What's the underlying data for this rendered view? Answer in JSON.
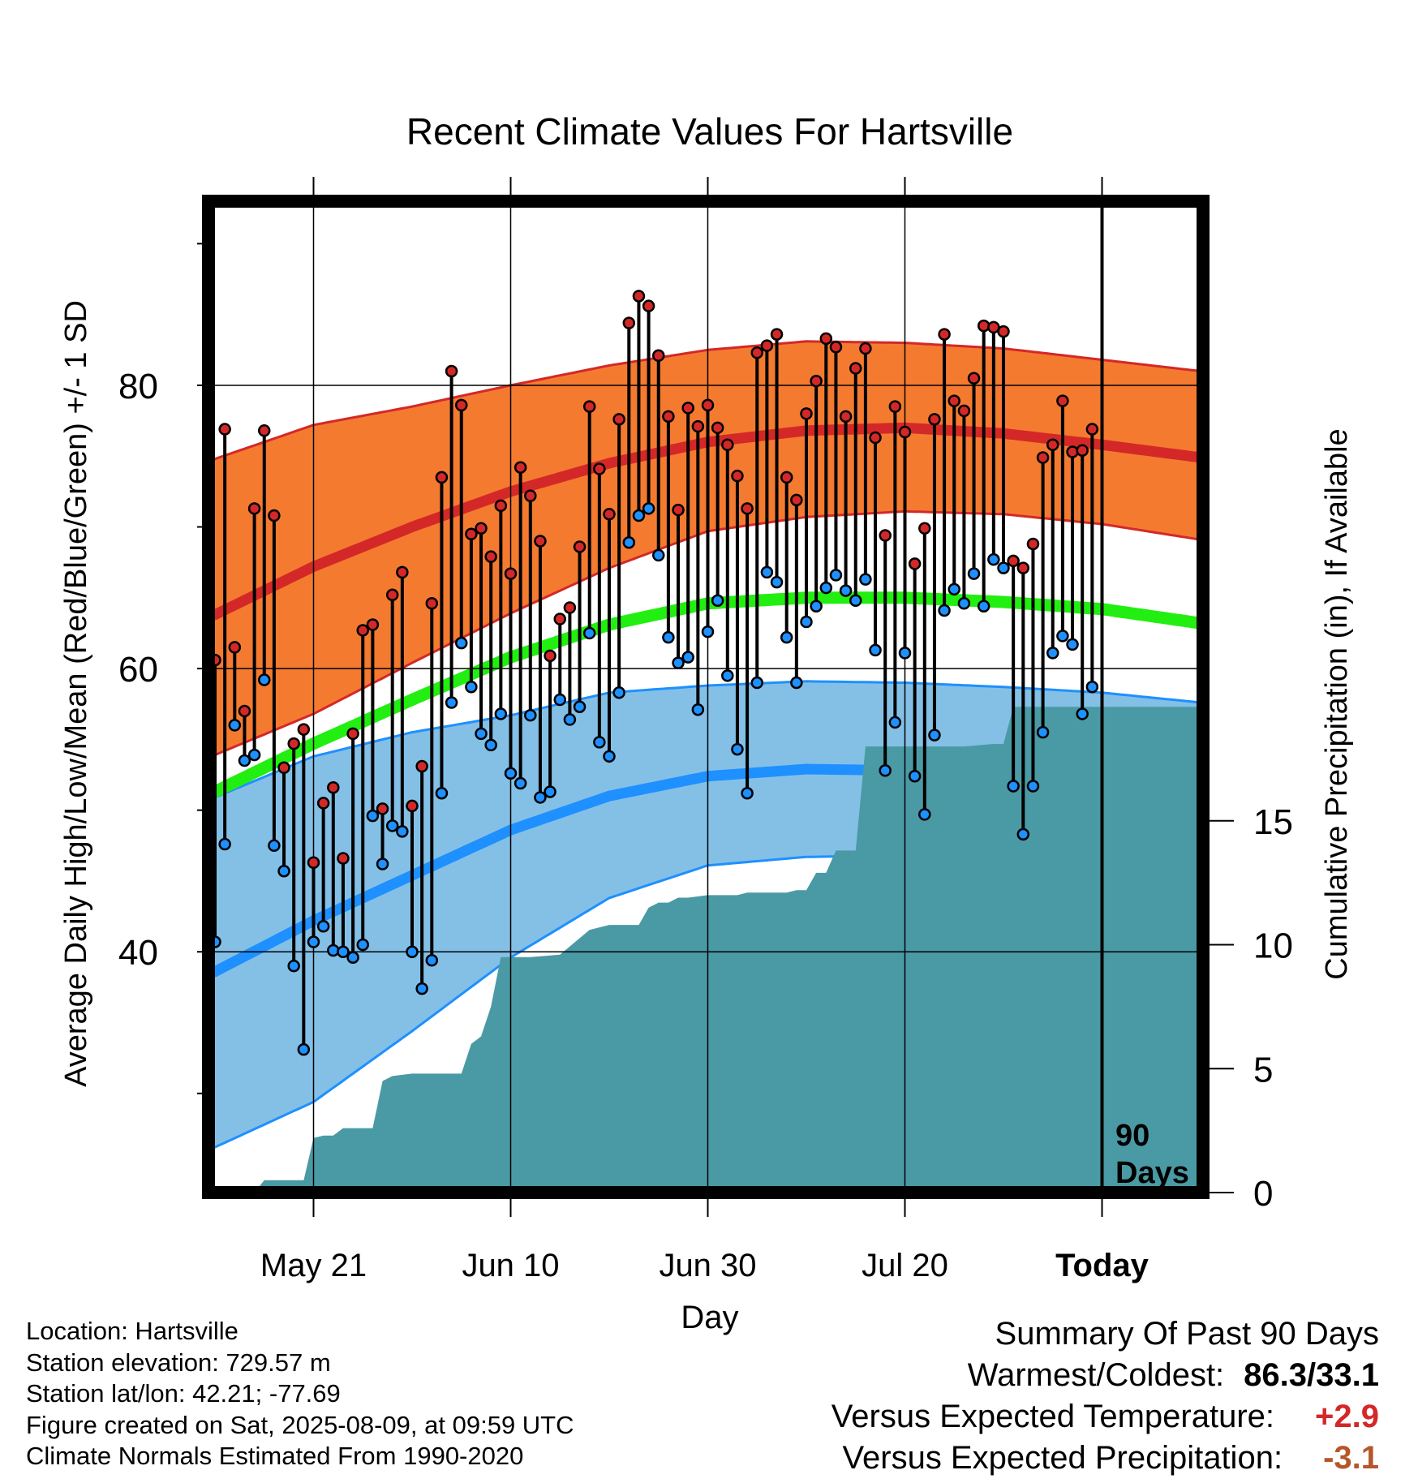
{
  "chart_data": {
    "type": "line",
    "title": "Recent Climate Values For Hartsville",
    "xlabel": "Day",
    "ylabel": "Average Daily High/Low/Mean (Red/Blue/Green) +/- 1 SD",
    "y2label": "Cumulative Precipitation (in), If Available",
    "x_tick_labels": [
      "May 21",
      "Jun 10",
      "Jun 30",
      "Jul 20",
      "Today"
    ],
    "y_ticks": [
      "40",
      "60",
      "80"
    ],
    "y2_ticks": [
      "0",
      "5",
      "10",
      "15"
    ],
    "ylim": [
      23,
      93
    ],
    "y2lim": [
      0,
      40
    ],
    "today_label_line1": "90",
    "today_label_line2": "Days",
    "colors": {
      "high_band": "#f47a30",
      "high_mean": "#d42828",
      "low_band": "#84c0e6",
      "low_mean": "#1e90ff",
      "mean_line": "#22ee11",
      "precip": "#4a9aa5",
      "high_marker": "#d42828",
      "low_marker": "#1e90ff"
    },
    "normals": {
      "day_index": [
        0,
        10,
        20,
        30,
        40,
        50,
        60,
        70,
        80,
        90,
        100
      ],
      "high_mean": [
        63.8,
        67.2,
        70.0,
        72.5,
        74.5,
        76.0,
        76.8,
        77.0,
        76.6,
        75.8,
        74.9
      ],
      "high_sd_upper": [
        74.8,
        77.2,
        78.5,
        80.0,
        81.4,
        82.5,
        83.1,
        83.0,
        82.6,
        81.8,
        81.0
      ],
      "high_sd_lower": [
        53.9,
        56.8,
        60.4,
        63.9,
        67.1,
        69.7,
        70.7,
        71.1,
        70.9,
        70.2,
        69.1
      ],
      "mean": [
        51.3,
        54.7,
        57.8,
        60.8,
        63.1,
        64.6,
        65.0,
        65.0,
        64.7,
        64.2,
        63.2
      ],
      "low_mean": [
        38.6,
        42.2,
        45.4,
        48.6,
        51.0,
        52.4,
        52.9,
        52.8,
        52.6,
        52.2,
        51.3
      ],
      "low_sd_upper": [
        50.9,
        53.8,
        55.5,
        56.7,
        58.3,
        58.8,
        59.1,
        59.0,
        58.7,
        58.3,
        57.6
      ],
      "low_sd_lower": [
        26.2,
        29.4,
        34.4,
        39.6,
        43.8,
        46.1,
        46.7,
        46.8,
        46.7,
        46.3,
        45.5
      ]
    },
    "series": [
      {
        "name": "High",
        "values": [
          60.6,
          76.9,
          61.5,
          57.0,
          71.3,
          76.8,
          70.8,
          53.0,
          54.7,
          55.7,
          46.3,
          50.5,
          51.6,
          46.6,
          55.4,
          62.7,
          63.1,
          50.1,
          65.2,
          66.8,
          50.3,
          53.1,
          64.6,
          73.5,
          81.0,
          78.6,
          69.5,
          69.9,
          67.9,
          71.5,
          66.7,
          74.2,
          72.2,
          69.0,
          60.9,
          63.5,
          64.3,
          68.6,
          78.5,
          74.1,
          70.9,
          77.6,
          84.4,
          86.3,
          85.6,
          82.1,
          77.8,
          71.2,
          78.4,
          77.1,
          78.6,
          77.0,
          75.8,
          73.6,
          71.3,
          82.3,
          82.8,
          83.6,
          73.5,
          71.9,
          78.0,
          80.3,
          83.3,
          82.7,
          77.8,
          81.2,
          82.6,
          76.3,
          69.4,
          78.5,
          76.7,
          67.4,
          69.9,
          77.6,
          83.6,
          78.9,
          78.2,
          80.5,
          84.2,
          84.1,
          83.8,
          67.6,
          67.1,
          68.8,
          74.9,
          75.8,
          78.9,
          75.3,
          75.4,
          76.9
        ]
      },
      {
        "name": "Low",
        "values": [
          40.7,
          47.6,
          56.0,
          53.5,
          53.9,
          59.2,
          47.5,
          45.7,
          39.0,
          33.1,
          40.7,
          41.8,
          40.1,
          40.0,
          39.6,
          40.5,
          49.6,
          46.2,
          48.9,
          48.5,
          40.0,
          37.4,
          39.4,
          51.2,
          57.6,
          61.8,
          58.7,
          55.4,
          54.6,
          56.8,
          52.6,
          51.9,
          56.7,
          50.9,
          51.3,
          57.8,
          56.4,
          57.3,
          62.5,
          54.8,
          53.8,
          58.3,
          68.9,
          70.8,
          71.3,
          68.0,
          62.2,
          60.4,
          60.8,
          57.1,
          62.6,
          64.8,
          59.5,
          54.3,
          51.2,
          59.0,
          66.8,
          66.1,
          62.2,
          59.0,
          63.3,
          64.4,
          65.7,
          66.6,
          65.5,
          64.8,
          66.3,
          61.3,
          52.8,
          56.2,
          61.1,
          52.4,
          49.7,
          55.3,
          64.1,
          65.6,
          64.6,
          66.7,
          64.4,
          67.7,
          67.1,
          51.7,
          48.3,
          51.7,
          55.5,
          61.1,
          62.3,
          61.7,
          56.8,
          58.7
        ]
      }
    ],
    "precip_cumulative": {
      "x": [
        0,
        4,
        5,
        9,
        10,
        11,
        12,
        13,
        16,
        17,
        18,
        20,
        22,
        25,
        26,
        27,
        28,
        29,
        30,
        31,
        32,
        35,
        38,
        40,
        43,
        44,
        45,
        46,
        47,
        48,
        50,
        53,
        54,
        58,
        59,
        60,
        61,
        62,
        63,
        64,
        65,
        66,
        67,
        68,
        69,
        76,
        79,
        80,
        81,
        90,
        100
      ],
      "y": [
        0.0,
        0.0,
        0.5,
        0.5,
        2.2,
        2.3,
        2.3,
        2.6,
        2.6,
        4.5,
        4.7,
        4.8,
        4.8,
        4.8,
        6.0,
        6.3,
        7.5,
        9.5,
        9.5,
        9.5,
        9.5,
        9.6,
        10.6,
        10.8,
        10.8,
        11.5,
        11.7,
        11.7,
        11.9,
        11.9,
        12.0,
        12.0,
        12.1,
        12.1,
        12.2,
        12.2,
        12.9,
        12.9,
        13.8,
        13.8,
        13.8,
        18.0,
        18.0,
        18.0,
        18.0,
        18.0,
        18.1,
        18.1,
        19.6,
        19.6,
        19.6
      ]
    },
    "grid": true,
    "legend": "none"
  },
  "info": {
    "location": "Location: Hartsville",
    "elevation": "Station elevation: 729.57 m",
    "latlon": "Station lat/lon: 42.21; -77.69",
    "created": "Figure created on Sat, 2025-08-09, at 09:59 UTC",
    "normals": "Climate Normals Estimated From 1990-2020"
  },
  "summary": {
    "heading": "Summary Of Past 90 Days",
    "warmest_label": "Warmest/Coldest:",
    "warmest_value": "86.3/33.1",
    "temp_label": "Versus Expected Temperature:",
    "temp_value": "+2.9",
    "temp_color": "#d42828",
    "precip_label": "Versus Expected Precipitation:",
    "precip_value": "-3.1",
    "precip_color": "#b5572a"
  }
}
